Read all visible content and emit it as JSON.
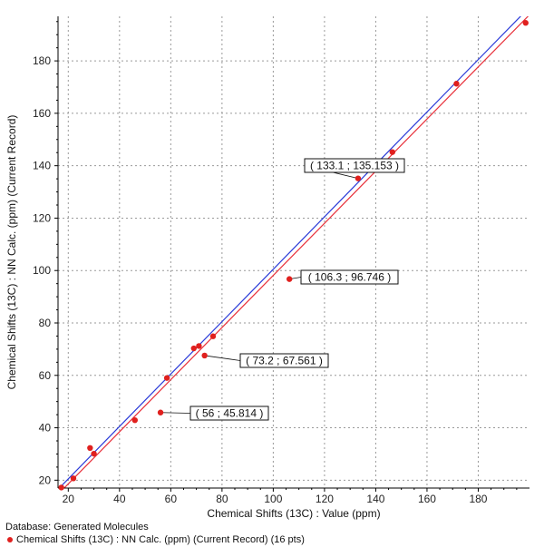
{
  "colors": {
    "points": "#e0201e",
    "fit_line": "#e8303a",
    "ideal_line": "#2a3ad8",
    "grid": "#9a9a9a",
    "axis": "#000000"
  },
  "footer": {
    "database": "Database: Generated Molecules",
    "legend_label": "Chemical Shifts (13C) : NN Calc. (ppm) (Current Record) (16 pts)"
  },
  "chart_data": {
    "type": "scatter",
    "xlabel": "Chemical Shifts (13C) : Value (ppm)",
    "ylabel": "Chemical Shifts (13C) : NN Calc. (ppm) (Current Record)",
    "xlim": [
      16,
      200
    ],
    "ylim": [
      17,
      197
    ],
    "x_ticks": [
      20,
      40,
      60,
      80,
      100,
      120,
      140,
      160,
      180
    ],
    "y_ticks": [
      20,
      40,
      60,
      80,
      100,
      120,
      140,
      160,
      180
    ],
    "grid": true,
    "legend_placement": "below-chart",
    "series": [
      {
        "name": "Chemical Shifts (13C) : NN Calc. (ppm) (Current Record)",
        "x": [
          17.3,
          22,
          28.5,
          30,
          46,
          56,
          58.5,
          69,
          71,
          73.2,
          76.5,
          106.3,
          133.1,
          146.5,
          171.5,
          198.5
        ],
        "y": [
          17.2,
          20.7,
          32.3,
          30.1,
          42.9,
          45.814,
          59,
          70.3,
          71.2,
          67.561,
          74.9,
          96.746,
          135.153,
          145.2,
          171.3,
          194.5
        ]
      }
    ],
    "lines": [
      {
        "kind": "ideal",
        "x": [
          16,
          200
        ],
        "y": [
          16.5,
          200.5
        ]
      },
      {
        "kind": "fit",
        "x": [
          16,
          200
        ],
        "y": [
          14.6,
          197.6
        ]
      }
    ],
    "annotations": [
      {
        "text": "( 133.1 ; 135.153 )",
        "x": 133.1,
        "y": 135.153
      },
      {
        "text": "( 106.3 ; 96.746 )",
        "x": 106.3,
        "y": 96.746
      },
      {
        "text": "( 73.2 ; 67.561 )",
        "x": 73.2,
        "y": 67.561
      },
      {
        "text": "( 56 ; 45.814 )",
        "x": 56,
        "y": 45.814
      }
    ]
  }
}
